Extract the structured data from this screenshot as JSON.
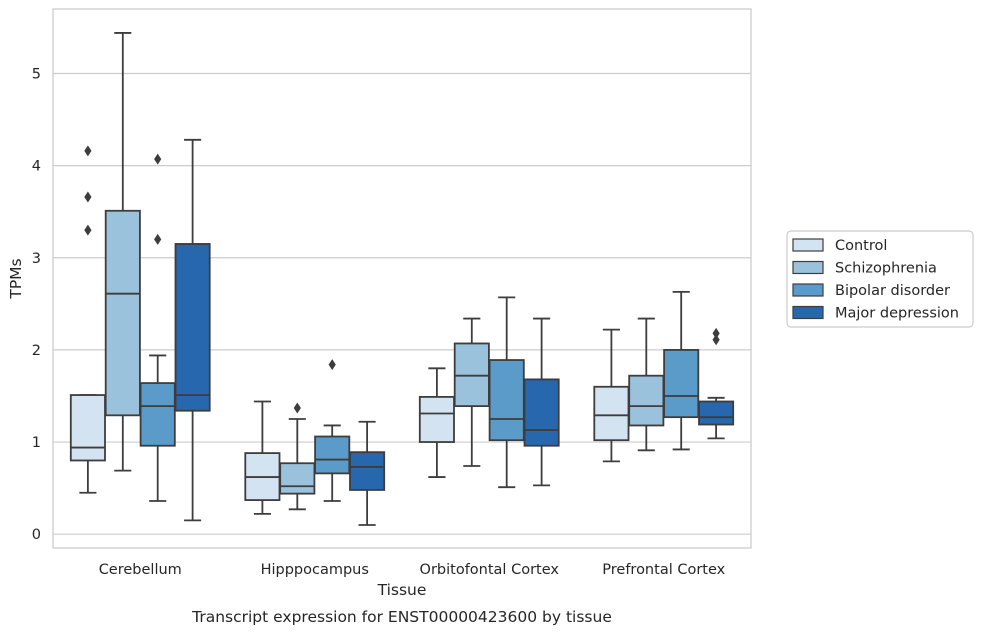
{
  "chart_data": {
    "type": "box",
    "caption": "Transcript expression for ENST00000423600 by tissue",
    "xlabel": "Tissue",
    "ylabel": "TPMs",
    "ylim": [
      -0.15,
      5.7
    ],
    "yticks": [
      0,
      1,
      2,
      3,
      4,
      5
    ],
    "grid": "horizontal",
    "legend_position": "right",
    "categories": [
      "Cerebellum",
      "Hipppocampus",
      "Orbitofontal Cortex",
      "Prefrontal Cortex"
    ],
    "series": [
      {
        "name": "Control",
        "color": "#d4e3f2",
        "boxes": [
          {
            "whisker_low": 0.45,
            "q1": 0.8,
            "median": 0.94,
            "q3": 1.51,
            "whisker_high": 1.51,
            "outliers": [
              3.3,
              3.66,
              4.16
            ]
          },
          {
            "whisker_low": 0.22,
            "q1": 0.37,
            "median": 0.62,
            "q3": 0.88,
            "whisker_high": 1.44,
            "outliers": []
          },
          {
            "whisker_low": 0.62,
            "q1": 1.0,
            "median": 1.31,
            "q3": 1.49,
            "whisker_high": 1.8,
            "outliers": []
          },
          {
            "whisker_low": 0.79,
            "q1": 1.02,
            "median": 1.29,
            "q3": 1.6,
            "whisker_high": 2.22,
            "outliers": []
          }
        ]
      },
      {
        "name": "Schizophrenia",
        "color": "#9ac2dd",
        "boxes": [
          {
            "whisker_low": 0.69,
            "q1": 1.29,
            "median": 2.61,
            "q3": 3.51,
            "whisker_high": 5.44,
            "outliers": []
          },
          {
            "whisker_low": 0.27,
            "q1": 0.44,
            "median": 0.52,
            "q3": 0.77,
            "whisker_high": 1.25,
            "outliers": [
              1.37
            ]
          },
          {
            "whisker_low": 0.74,
            "q1": 1.39,
            "median": 1.72,
            "q3": 2.07,
            "whisker_high": 2.34,
            "outliers": []
          },
          {
            "whisker_low": 0.91,
            "q1": 1.18,
            "median": 1.39,
            "q3": 1.72,
            "whisker_high": 2.34,
            "outliers": []
          }
        ]
      },
      {
        "name": "Bipolar disorder",
        "color": "#5a9bc9",
        "boxes": [
          {
            "whisker_low": 0.36,
            "q1": 0.96,
            "median": 1.39,
            "q3": 1.64,
            "whisker_high": 1.94,
            "outliers": [
              3.2,
              4.07
            ]
          },
          {
            "whisker_low": 0.36,
            "q1": 0.66,
            "median": 0.81,
            "q3": 1.06,
            "whisker_high": 1.18,
            "outliers": [
              1.84
            ]
          },
          {
            "whisker_low": 0.51,
            "q1": 1.02,
            "median": 1.25,
            "q3": 1.89,
            "whisker_high": 2.57,
            "outliers": []
          },
          {
            "whisker_low": 0.92,
            "q1": 1.27,
            "median": 1.5,
            "q3": 2.0,
            "whisker_high": 2.63,
            "outliers": []
          }
        ]
      },
      {
        "name": "Major depression",
        "color": "#2767ad",
        "boxes": [
          {
            "whisker_low": 0.15,
            "q1": 1.34,
            "median": 1.51,
            "q3": 3.15,
            "whisker_high": 4.28,
            "outliers": []
          },
          {
            "whisker_low": 0.1,
            "q1": 0.48,
            "median": 0.73,
            "q3": 0.89,
            "whisker_high": 1.22,
            "outliers": []
          },
          {
            "whisker_low": 0.53,
            "q1": 0.96,
            "median": 1.13,
            "q3": 1.68,
            "whisker_high": 2.34,
            "outliers": []
          },
          {
            "whisker_low": 1.04,
            "q1": 1.19,
            "median": 1.27,
            "q3": 1.44,
            "whisker_high": 1.48,
            "outliers": [
              2.11,
              2.18
            ]
          }
        ]
      }
    ]
  }
}
